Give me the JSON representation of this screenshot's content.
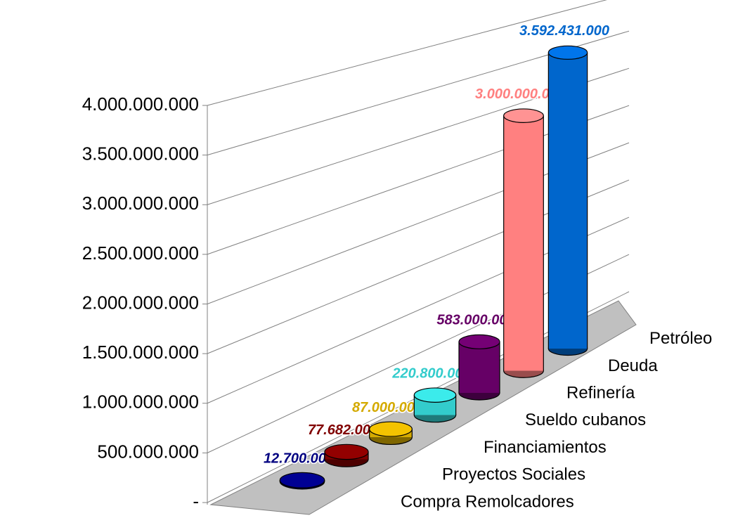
{
  "chart_data": {
    "type": "bar3d",
    "categories": [
      "Compra Remolcadores",
      "Proyectos Sociales",
      "Financiamientos",
      "Sueldo cubanos",
      "Refinería",
      "Deuda",
      "Petróleo"
    ],
    "series": [
      {
        "colors": [
          "#000080",
          "#800000",
          "#d4aa00",
          "#33cccc",
          "#660066",
          "#ff8080",
          "#0066cc"
        ],
        "values": [
          12700000,
          77682000,
          87000000,
          220800000,
          583000000,
          3000000000,
          3592431000
        ],
        "value_labels": [
          "12.700.000",
          "77.682.000",
          "87.000.000",
          "220.800.000",
          "583.000.000",
          "3.000.000.000",
          "3.592.431.000"
        ]
      }
    ],
    "ylim": [
      0,
      4000000000
    ],
    "yticks": [
      {
        "value": 0,
        "label": "-"
      },
      {
        "value": 500000000,
        "label": "500.000.000"
      },
      {
        "value": 1000000000,
        "label": "1.000.000.000"
      },
      {
        "value": 1500000000,
        "label": "1.500.000.000"
      },
      {
        "value": 2000000000,
        "label": "2.000.000.000"
      },
      {
        "value": 2500000000,
        "label": "2.500.000.000"
      },
      {
        "value": 3000000000,
        "label": "3.000.000.000"
      },
      {
        "value": 3500000000,
        "label": "3.500.000.000"
      },
      {
        "value": 4000000000,
        "label": "4.000.000.000"
      }
    ],
    "grid": true
  }
}
